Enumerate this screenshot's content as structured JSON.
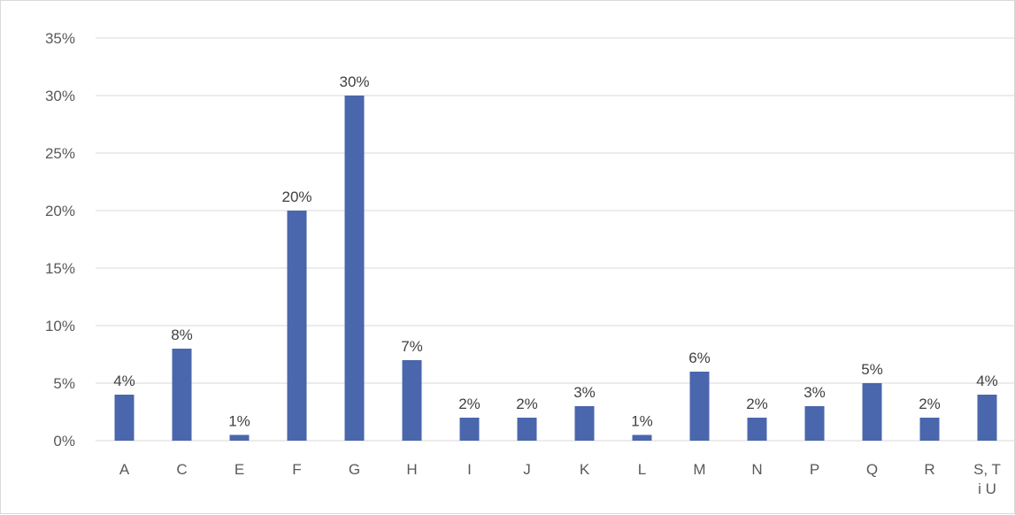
{
  "chart_data": {
    "type": "bar",
    "title": "",
    "xlabel": "",
    "ylabel": "",
    "categories": [
      "A",
      "C",
      "E",
      "F",
      "G",
      "H",
      "I",
      "J",
      "K",
      "L",
      "M",
      "N",
      "P",
      "Q",
      "R",
      "S, T i U"
    ],
    "values": [
      4,
      8,
      0.5,
      20,
      30,
      7,
      2,
      2,
      3,
      0.5,
      6,
      2,
      3,
      5,
      2,
      4
    ],
    "data_labels": [
      "4%",
      "8%",
      "1%",
      "20%",
      "30%",
      "7%",
      "2%",
      "2%",
      "3%",
      "1%",
      "6%",
      "2%",
      "3%",
      "5%",
      "2%",
      "4%"
    ],
    "ylim": [
      0,
      35
    ],
    "yticks": [
      0,
      5,
      10,
      15,
      20,
      25,
      30,
      35
    ],
    "ytick_labels": [
      "0%",
      "5%",
      "10%",
      "15%",
      "20%",
      "25%",
      "30%",
      "35%"
    ],
    "grid": true,
    "legend": "none",
    "bar_color": "#4a66ac",
    "grid_color": "#d9d9d9"
  }
}
